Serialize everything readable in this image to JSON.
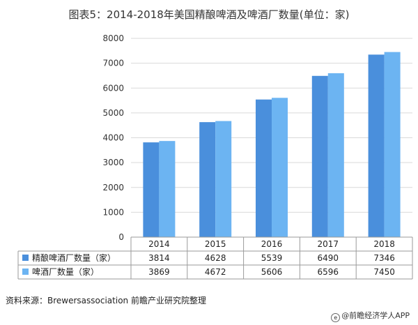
{
  "title": "图表5：2014-2018年美国精酿啤酒及啤酒厂数量(单位：家)",
  "source": "资料来源：Brewersassociation 前瞻产业研究院整理",
  "brand": "@前瞻经济学人APP",
  "colors": {
    "craft": "#4a8fdc",
    "brewery": "#6cb4f2"
  },
  "chart_data": {
    "type": "bar",
    "categories": [
      "2014",
      "2015",
      "2016",
      "2017",
      "2018"
    ],
    "series": [
      {
        "name": "精酿啤酒厂数量（家）",
        "values": [
          3814,
          4628,
          5539,
          6490,
          7346
        ]
      },
      {
        "name": "啤酒厂数量（家）",
        "values": [
          3869,
          4672,
          5606,
          6596,
          7450
        ]
      }
    ],
    "title": "图表5：2014-2018年美国精酿啤酒及啤酒厂数量(单位：家)",
    "xlabel": "",
    "ylabel": "",
    "ylim": [
      0,
      8000
    ],
    "yticks": [
      0,
      1000,
      2000,
      3000,
      4000,
      5000,
      6000,
      7000,
      8000
    ],
    "grid": true,
    "legend": "data-table"
  }
}
